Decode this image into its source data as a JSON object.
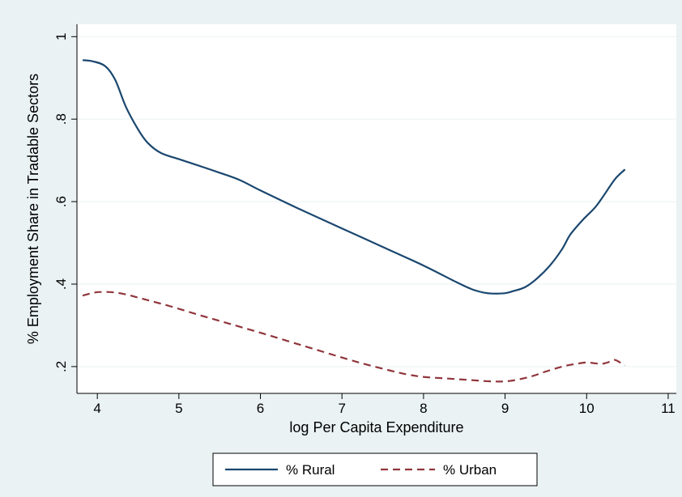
{
  "chart_data": {
    "type": "line",
    "xlabel": "log Per Capita Expenditure",
    "ylabel": "% Employment Share in Tradable Sectors",
    "xlim": [
      3.75,
      11.1
    ],
    "ylim": [
      0.135,
      1.03
    ],
    "x_ticks": [
      4,
      5,
      6,
      7,
      8,
      9,
      10,
      11
    ],
    "x_tick_labels": [
      "4",
      "5",
      "6",
      "7",
      "8",
      "9",
      "10",
      "11"
    ],
    "y_ticks": [
      0.2,
      0.4,
      0.6,
      0.8,
      1.0
    ],
    "y_tick_labels": [
      ".2",
      ".4",
      ".6",
      ".8",
      "1"
    ],
    "grid": true,
    "legend_position": "bottom",
    "series": [
      {
        "name": "% Rural",
        "color": "#1a476f",
        "dash": "solid",
        "points": [
          [
            3.82,
            0.943
          ],
          [
            3.95,
            0.94
          ],
          [
            4.1,
            0.928
          ],
          [
            4.22,
            0.895
          ],
          [
            4.35,
            0.83
          ],
          [
            4.5,
            0.775
          ],
          [
            4.62,
            0.742
          ],
          [
            4.78,
            0.718
          ],
          [
            5.0,
            0.703
          ],
          [
            5.2,
            0.69
          ],
          [
            5.5,
            0.67
          ],
          [
            5.75,
            0.652
          ],
          [
            6.0,
            0.627
          ],
          [
            6.5,
            0.58
          ],
          [
            7.0,
            0.535
          ],
          [
            7.5,
            0.49
          ],
          [
            8.0,
            0.445
          ],
          [
            8.4,
            0.405
          ],
          [
            8.6,
            0.387
          ],
          [
            8.75,
            0.379
          ],
          [
            8.85,
            0.377
          ],
          [
            9.0,
            0.378
          ],
          [
            9.1,
            0.383
          ],
          [
            9.25,
            0.393
          ],
          [
            9.4,
            0.415
          ],
          [
            9.55,
            0.445
          ],
          [
            9.7,
            0.485
          ],
          [
            9.8,
            0.52
          ],
          [
            9.95,
            0.555
          ],
          [
            10.1,
            0.585
          ],
          [
            10.2,
            0.612
          ],
          [
            10.35,
            0.655
          ],
          [
            10.47,
            0.678
          ]
        ]
      },
      {
        "name": "% Urban",
        "color": "#90353b",
        "dash": "dashed",
        "points": [
          [
            3.82,
            0.372
          ],
          [
            3.95,
            0.379
          ],
          [
            4.05,
            0.381
          ],
          [
            4.2,
            0.38
          ],
          [
            4.35,
            0.375
          ],
          [
            4.6,
            0.362
          ],
          [
            4.9,
            0.346
          ],
          [
            5.25,
            0.325
          ],
          [
            5.6,
            0.305
          ],
          [
            6.0,
            0.282
          ],
          [
            6.5,
            0.252
          ],
          [
            7.0,
            0.222
          ],
          [
            7.3,
            0.205
          ],
          [
            7.6,
            0.19
          ],
          [
            7.8,
            0.181
          ],
          [
            8.0,
            0.175
          ],
          [
            8.3,
            0.171
          ],
          [
            8.6,
            0.167
          ],
          [
            8.85,
            0.164
          ],
          [
            9.05,
            0.165
          ],
          [
            9.3,
            0.175
          ],
          [
            9.5,
            0.188
          ],
          [
            9.7,
            0.2
          ],
          [
            9.85,
            0.206
          ],
          [
            10.0,
            0.21
          ],
          [
            10.1,
            0.208
          ],
          [
            10.2,
            0.207
          ],
          [
            10.3,
            0.213
          ],
          [
            10.35,
            0.216
          ],
          [
            10.42,
            0.209
          ],
          [
            10.47,
            0.203
          ]
        ]
      }
    ]
  }
}
